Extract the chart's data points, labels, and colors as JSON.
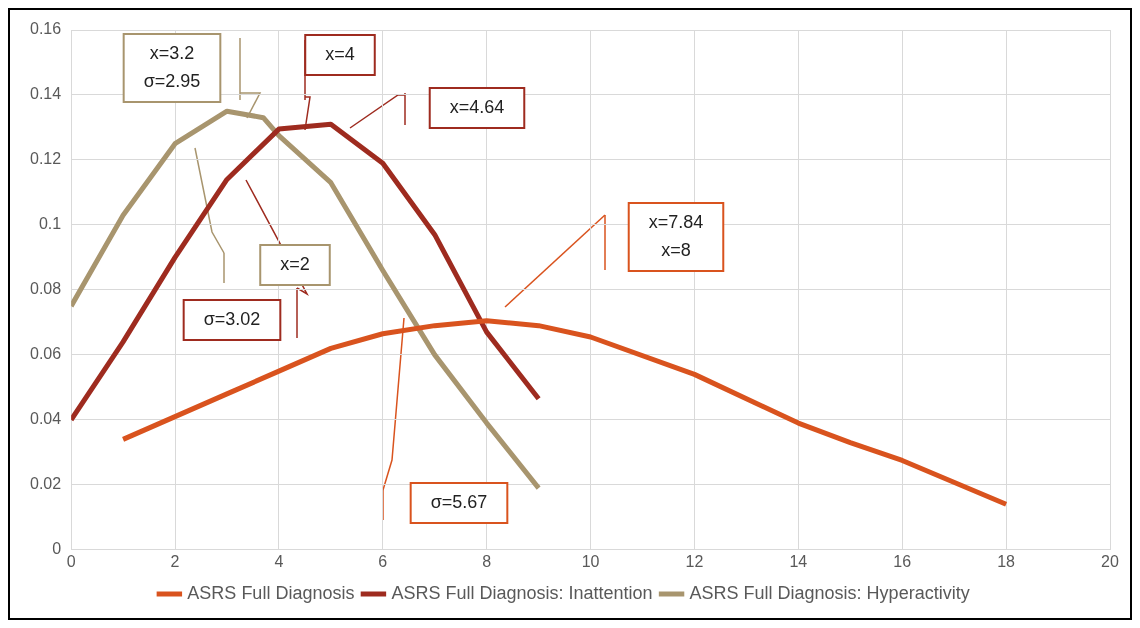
{
  "chart_data": {
    "type": "line",
    "xlim": [
      0,
      20
    ],
    "xticks": [
      0,
      2,
      4,
      6,
      8,
      10,
      12,
      14,
      16,
      18,
      20
    ],
    "ylim": [
      0,
      0.16
    ],
    "yticks": [
      0,
      0.02,
      0.04,
      0.06,
      0.08,
      0.1,
      0.12,
      0.14,
      0.16
    ],
    "grid": true,
    "legend": "bottom",
    "marker": "none",
    "line_style": "solid",
    "series": [
      {
        "name": "ASRS Full Diagnosis",
        "color": "#d9531e",
        "x": [
          1,
          2,
          3,
          4,
          5,
          6,
          7,
          8,
          9,
          10,
          12,
          14,
          15,
          16,
          18
        ],
        "values": [
          0.034,
          0.041,
          0.048,
          0.055,
          0.062,
          0.0665,
          0.069,
          0.0705,
          0.069,
          0.0655,
          0.054,
          0.039,
          0.033,
          0.0275,
          0.014
        ]
      },
      {
        "name": "ASRS Full Diagnosis: Inattention",
        "color": "#9e2b1f",
        "x": [
          0,
          1,
          2,
          3,
          4,
          5,
          6,
          7,
          8,
          9
        ],
        "values": [
          0.04,
          0.064,
          0.09,
          0.114,
          0.1295,
          0.131,
          0.119,
          0.097,
          0.067,
          0.0465
        ]
      },
      {
        "name": "ASRS Full Diagnosis: Hyperactivity",
        "color": "#a8956e",
        "x": [
          0,
          1,
          2,
          3,
          3.7,
          4,
          5,
          6,
          7,
          8,
          9
        ],
        "values": [
          0.075,
          0.103,
          0.125,
          0.135,
          0.133,
          0.1275,
          0.113,
          0.086,
          0.06,
          0.039,
          0.019
        ]
      }
    ],
    "annotations": [
      "x=3.2\nσ=2.95",
      "x=4",
      "x=4.64",
      "x=7.84\nx=8",
      "x=2",
      "σ=3.02",
      "σ=5.67"
    ]
  }
}
